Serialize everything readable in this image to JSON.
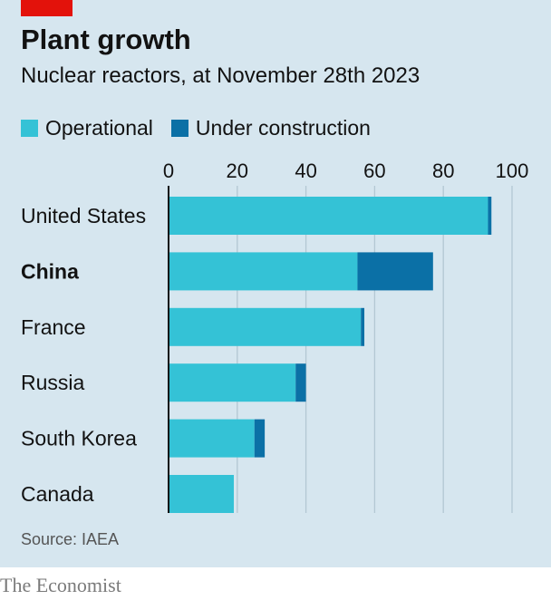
{
  "header": {
    "title": "Plant growth",
    "subtitle": "Nuclear reactors, at November 28th 2023"
  },
  "colors": {
    "accent": "#e3120b",
    "operational": "#34c2d6",
    "under_construction": "#0b70a6"
  },
  "chart_data": {
    "type": "bar",
    "orientation": "horizontal",
    "stacked": true,
    "categories": [
      "United States",
      "China",
      "France",
      "Russia",
      "South Korea",
      "Canada"
    ],
    "highlight_category": "China",
    "series": [
      {
        "name": "Operational",
        "values": [
          93,
          55,
          56,
          37,
          25,
          19
        ]
      },
      {
        "name": "Under construction",
        "values": [
          1,
          22,
          1,
          3,
          3,
          0
        ]
      }
    ],
    "xlim": [
      0,
      100
    ],
    "xticks": [
      0,
      20,
      40,
      60,
      80,
      100
    ],
    "grid": true,
    "legend_position": "top-left"
  },
  "footer": {
    "source": "Source: IAEA",
    "brand": "The Economist"
  }
}
